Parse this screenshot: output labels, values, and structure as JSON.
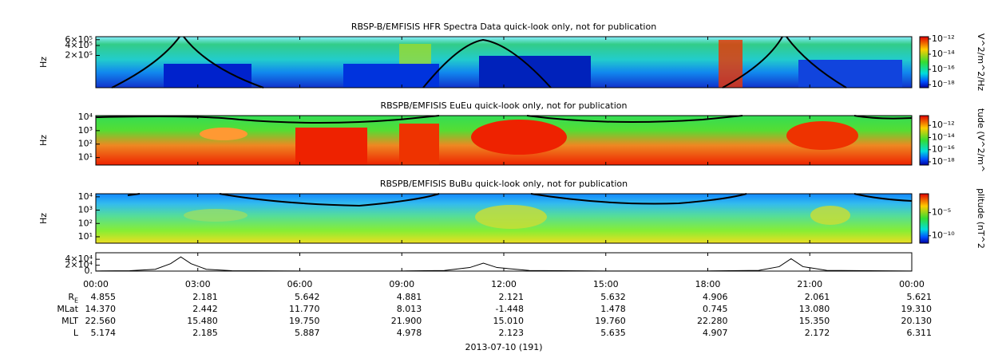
{
  "panels": [
    {
      "title": "RBSP-B/EMFISIS  HFR Spectra Data quick-look only, not for publication",
      "ylabel": "Hz",
      "log": true,
      "ylim": [
        21000,
        740000
      ],
      "yticks": [
        {
          "value": 600000,
          "label": "6×10⁵"
        },
        {
          "value": 400000,
          "label": "4×10⁵"
        },
        {
          "value": 200000,
          "label": "2×10⁵"
        }
      ],
      "colorbar": {
        "label": "V^2/m^2/Hz",
        "log": true,
        "lim": [
          4e-19,
          2e-12
        ],
        "ticks": [
          {
            "value": 1e-12,
            "label": "10⁻¹²"
          },
          {
            "value": 1e-14,
            "label": "10⁻¹⁴"
          },
          {
            "value": 1e-16,
            "label": "10⁻¹⁶"
          },
          {
            "value": 1e-18,
            "label": "10⁻¹⁸"
          }
        ]
      }
    },
    {
      "title": "RBSPB/EMFISIS  EuEu quick-look only, not for publication",
      "ylabel": "Hz",
      "log": true,
      "ylim": [
        2.8,
        13000
      ],
      "yticks": [
        {
          "value": 10000,
          "label": "10⁴"
        },
        {
          "value": 1000,
          "label": "10³"
        },
        {
          "value": 100,
          "label": "10²"
        },
        {
          "value": 10,
          "label": "10¹"
        }
      ],
      "colorbar": {
        "label": "tude (V^2/m^",
        "log": true,
        "lim": [
          3e-19,
          4e-11
        ],
        "ticks": [
          {
            "value": 1e-12,
            "label": "10⁻¹²"
          },
          {
            "value": 1e-14,
            "label": "10⁻¹⁴"
          },
          {
            "value": 1e-16,
            "label": "10⁻¹⁶"
          },
          {
            "value": 1e-18,
            "label": "10⁻¹⁸"
          }
        ]
      }
    },
    {
      "title": "RBSPB/EMFISIS  BuBu quick-look only, not for publication",
      "ylabel": "Hz",
      "log": true,
      "ylim": [
        3.3,
        17000
      ],
      "yticks": [
        {
          "value": 10000,
          "label": "10⁴"
        },
        {
          "value": 1000,
          "label": "10³"
        },
        {
          "value": 100,
          "label": "10²"
        },
        {
          "value": 10,
          "label": "10¹"
        }
      ],
      "colorbar": {
        "label": "plitude (nT^2",
        "log": true,
        "lim": [
          2.5e-12,
          0.12
        ],
        "ticks": [
          {
            "value": 1e-05,
            "label": "10⁻⁵"
          },
          {
            "value": 1e-10,
            "label": "10⁻¹⁰"
          }
        ]
      }
    }
  ],
  "line_panel": {
    "type": "line",
    "xlim": [
      0,
      24
    ],
    "ylim": [
      0,
      62000
    ],
    "yticks": [
      {
        "value": 40000,
        "label": "4×10⁴"
      },
      {
        "value": 20000,
        "label": "2×10⁴"
      },
      {
        "value": 0,
        "label": "0."
      }
    ],
    "xticks": [
      {
        "value": 0,
        "label": "00:00"
      },
      {
        "value": 3,
        "label": "03:00"
      },
      {
        "value": 6,
        "label": "06:00"
      },
      {
        "value": 9,
        "label": "09:00"
      },
      {
        "value": 12,
        "label": "12:00"
      },
      {
        "value": 15,
        "label": "15:00"
      },
      {
        "value": 18,
        "label": "18:00"
      },
      {
        "value": 21,
        "label": "21:00"
      },
      {
        "value": 24,
        "label": "00:00"
      }
    ],
    "x": [
      0,
      1,
      1.75,
      2.2,
      2.5,
      2.8,
      3.25,
      4,
      6,
      9,
      10.25,
      11,
      11.4,
      11.8,
      12.75,
      15,
      18,
      19.5,
      20.1,
      20.45,
      20.8,
      21.5,
      24
    ],
    "values": [
      500,
      1500,
      6000,
      25000,
      48000,
      25000,
      6000,
      1500,
      500,
      500,
      2000,
      12000,
      27000,
      12000,
      2000,
      500,
      500,
      2500,
      15000,
      42000,
      15000,
      2500,
      500
    ]
  },
  "ephemeris": [
    {
      "label": "R",
      "label_sub": "E",
      "values": [
        "4.855",
        "2.181",
        "5.642",
        "4.881",
        "2.121",
        "5.632",
        "4.906",
        "2.061",
        "5.621"
      ]
    },
    {
      "label": "MLat",
      "values": [
        "14.370",
        "2.442",
        "11.770",
        "8.013",
        "-1.448",
        "1.478",
        "0.745",
        "13.080",
        "19.310"
      ]
    },
    {
      "label": "MLT",
      "values": [
        "22.560",
        "15.480",
        "19.750",
        "21.900",
        "15.010",
        "19.760",
        "22.280",
        "15.350",
        "20.130"
      ]
    },
    {
      "label": "L",
      "values": [
        "5.174",
        "2.185",
        "5.887",
        "4.978",
        "2.123",
        "5.635",
        "4.907",
        "2.172",
        "6.311"
      ]
    }
  ],
  "date_label": "2013-07-10 (191)"
}
